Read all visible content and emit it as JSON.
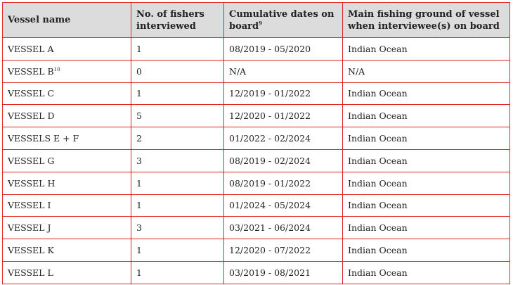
{
  "table": {
    "headers": {
      "vessel_name": "Vessel name",
      "fishers": "No. of fishers interviewed",
      "dates": "Cumulative dates on board",
      "dates_note": "9",
      "ground": "Main fishing ground of vessel when interviewee(s) on board"
    },
    "rows": [
      {
        "name": "VESSEL A",
        "name_note": "",
        "fishers": "1",
        "dates": "08/2019 - 05/2020",
        "ground": "Indian Ocean"
      },
      {
        "name": "VESSEL B",
        "name_note": "10",
        "fishers": "0",
        "dates": "N/A",
        "ground": "N/A"
      },
      {
        "name": "VESSEL C",
        "name_note": "",
        "fishers": "1",
        "dates": "12/2019 - 01/2022",
        "ground": "Indian Ocean"
      },
      {
        "name": "VESSEL D",
        "name_note": "",
        "fishers": "5",
        "dates": "12/2020 - 01/2022",
        "ground": "Indian Ocean"
      },
      {
        "name": "VESSELS E + F",
        "name_note": "",
        "fishers": "2",
        "dates": "01/2022 - 02/2024",
        "ground": "Indian Ocean"
      },
      {
        "name": "VESSEL G",
        "name_note": "",
        "fishers": "3",
        "dates": "08/2019 - 02/2024",
        "ground": "Indian Ocean"
      },
      {
        "name": "VESSEL H",
        "name_note": "",
        "fishers": "1",
        "dates": "08/2019 - 01/2022",
        "ground": "Indian Ocean"
      },
      {
        "name": "VESSEL I",
        "name_note": "",
        "fishers": "1",
        "dates": "01/2024 - 05/2024",
        "ground": "Indian Ocean"
      },
      {
        "name": "VESSEL J",
        "name_note": "",
        "fishers": "3",
        "dates": "03/2021 - 06/2024",
        "ground": "Indian Ocean"
      },
      {
        "name": "VESSEL K",
        "name_note": "",
        "fishers": "1",
        "dates": "12/2020 - 07/2022",
        "ground": "Indian Ocean"
      },
      {
        "name": "VESSEL L",
        "name_note": "",
        "fishers": "1",
        "dates": "03/2019 - 08/2021",
        "ground": "Indian Ocean"
      }
    ]
  }
}
